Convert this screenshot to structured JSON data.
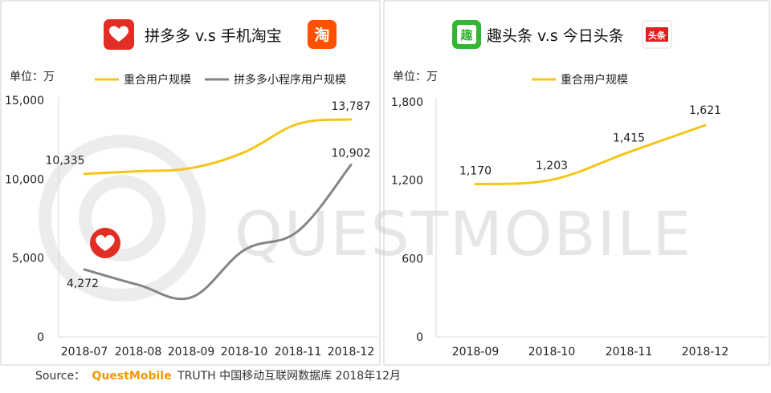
{
  "watermark": "QUESTMOBILE",
  "source": {
    "prefix": "Source：",
    "brand": "QuestMobile",
    "rest": "TRUTH 中国移动互联网数据库 2018年12月"
  },
  "colors": {
    "yellow": "#f5c518",
    "gray": "#858585",
    "pdd_red": "#e02e24",
    "taobao_orange": "#ff5000",
    "qtt_green": "#35b535",
    "toutiao_red": "#e02020",
    "watermark": "#d8d8d8",
    "brand_orange": "#f39800"
  },
  "icons": {
    "pdd": "pinduoduo-logo-icon",
    "taobao": "taobao-logo-icon",
    "qtt": "qutoutiao-logo-icon",
    "toutiao": "toutiao-logo-icon",
    "taobao_glyph": "淘",
    "qtt_glyph": "趣",
    "toutiao_glyph": "头条"
  },
  "chart_data": [
    {
      "type": "line",
      "title": "拼多多 v.s 手机淘宝",
      "unit": "单位：万",
      "categories": [
        "2018-07",
        "2018-08",
        "2018-09",
        "2018-10",
        "2018-11",
        "2018-12"
      ],
      "yticks": [
        "15,000",
        "10,000",
        "5,000",
        "0"
      ],
      "ytick_values": [
        15000,
        10000,
        5000,
        0
      ],
      "ylim": [
        0,
        15000
      ],
      "legend": "top",
      "grid": false,
      "series": [
        {
          "name": "重合用户规模",
          "color": "#f5c518",
          "values": [
            10335,
            10500,
            10700,
            11700,
            13500,
            13787
          ],
          "labels": [
            {
              "index": 0,
              "text": "10,335"
            },
            {
              "index": 5,
              "text": "13,787"
            }
          ]
        },
        {
          "name": "拼多多小程序用户规模",
          "color": "#858585",
          "values": [
            4272,
            3300,
            2500,
            5500,
            6700,
            10902
          ],
          "labels": [
            {
              "index": 0,
              "text": "4,272"
            },
            {
              "index": 5,
              "text": "10,902"
            }
          ]
        }
      ]
    },
    {
      "type": "line",
      "title": "趣头条 v.s 今日头条",
      "unit": "单位：万",
      "categories": [
        "2018-09",
        "2018-10",
        "2018-11",
        "2018-12"
      ],
      "yticks": [
        "1,800",
        "1,200",
        "600",
        "0"
      ],
      "ytick_values": [
        1800,
        1200,
        600,
        0
      ],
      "ylim": [
        0,
        1800
      ],
      "legend": "top",
      "grid": false,
      "series": [
        {
          "name": "重合用户规模",
          "color": "#f5c518",
          "values": [
            1170,
            1203,
            1415,
            1621
          ],
          "labels": [
            {
              "index": 0,
              "text": "1,170"
            },
            {
              "index": 1,
              "text": "1,203"
            },
            {
              "index": 2,
              "text": "1,415"
            },
            {
              "index": 3,
              "text": "1,621"
            }
          ]
        }
      ]
    }
  ]
}
